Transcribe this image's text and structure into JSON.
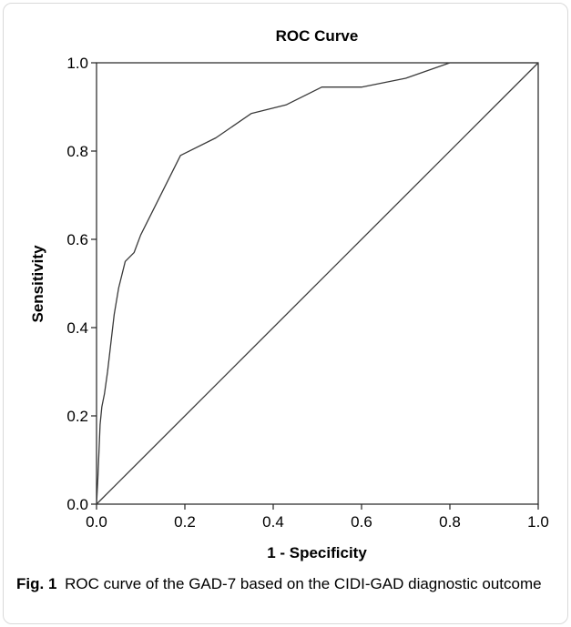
{
  "caption": {
    "label": "Fig. 1",
    "text": "ROC curve of the GAD-7 based on the CIDI-GAD diagnostic outcome"
  },
  "colors": {
    "line": "#3a3a3a",
    "frame": "#d9d9d9"
  },
  "chart_data": {
    "type": "line",
    "title": "ROC Curve",
    "xlabel": "1 - Specificity",
    "ylabel": "Sensitivity",
    "xlim": [
      0,
      1
    ],
    "ylim": [
      0,
      1
    ],
    "xticks": [
      "0.0",
      "0.2",
      "0.4",
      "0.6",
      "0.8",
      "1.0"
    ],
    "yticks": [
      "0.0",
      "0.2",
      "0.4",
      "0.6",
      "0.8",
      "1.0"
    ],
    "grid": false,
    "legend": "none",
    "series": [
      {
        "x": [
          0,
          0.003,
          0.008,
          0.012,
          0.018,
          0.025,
          0.04,
          0.05,
          0.065,
          0.085,
          0.1,
          0.12,
          0.14,
          0.19,
          0.27,
          0.35,
          0.43,
          0.51,
          0.6,
          0.7,
          0.8,
          0.82,
          1.0
        ],
        "y": [
          0,
          0.06,
          0.18,
          0.22,
          0.25,
          0.3,
          0.43,
          0.49,
          0.55,
          0.57,
          0.61,
          0.65,
          0.69,
          0.79,
          0.83,
          0.885,
          0.905,
          0.945,
          0.945,
          0.965,
          1.0,
          1.0,
          1.0
        ]
      },
      {
        "x": [
          0,
          1
        ],
        "y": [
          0,
          1
        ]
      }
    ]
  }
}
